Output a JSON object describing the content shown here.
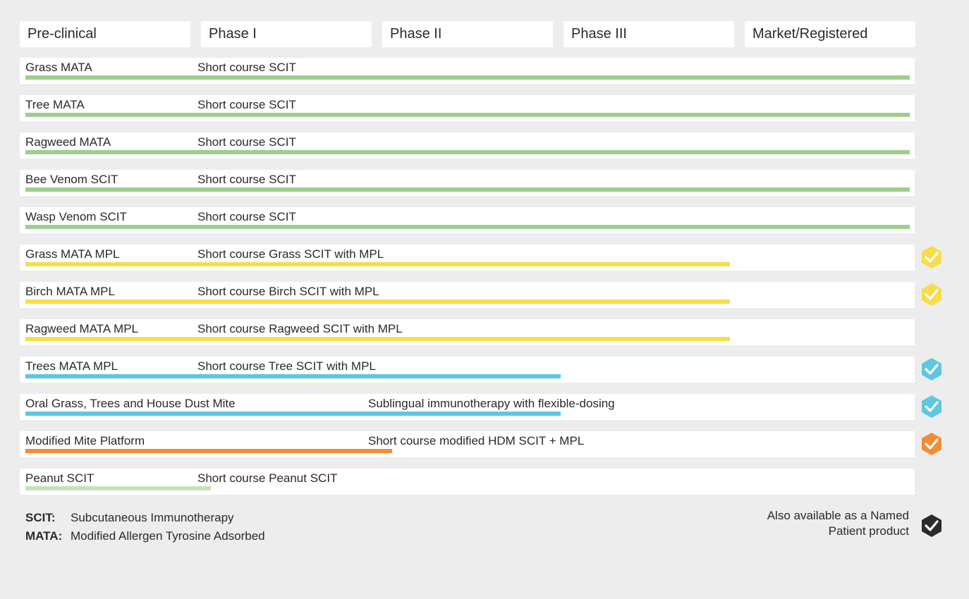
{
  "colors": {
    "green": "#9fce8c",
    "yellow": "#f7dd4c",
    "blue": "#5fc7e0",
    "orange": "#f28c35",
    "light_green": "#c4e3b8",
    "black": "#2b2b2b"
  },
  "chart_data": {
    "type": "table",
    "phases": [
      "Pre-clinical",
      "Phase I",
      "Phase II",
      "Phase III",
      "Market/Registered"
    ],
    "rows": [
      {
        "product": "Grass MATA",
        "description": "Short course SCIT",
        "progress": 1.0,
        "color": "green",
        "badge": null
      },
      {
        "product": "Tree MATA",
        "description": "Short course SCIT",
        "progress": 1.0,
        "color": "green",
        "badge": null
      },
      {
        "product": "Ragweed MATA",
        "description": "Short course SCIT",
        "progress": 1.0,
        "color": "green",
        "badge": null
      },
      {
        "product": "Bee Venom SCIT",
        "description": "Short course SCIT",
        "progress": 1.0,
        "color": "green",
        "badge": null
      },
      {
        "product": "Wasp Venom SCIT",
        "description": "Short course SCIT",
        "progress": 1.0,
        "color": "green",
        "badge": null
      },
      {
        "product": "Grass MATA MPL",
        "description": "Short course Grass SCIT with MPL",
        "progress": 0.797,
        "color": "yellow",
        "badge": "yellow"
      },
      {
        "product": "Birch MATA MPL",
        "description": "Short course Birch SCIT with MPL",
        "progress": 0.797,
        "color": "yellow",
        "badge": "yellow"
      },
      {
        "product": "Ragweed MATA MPL",
        "description": "Short course Ragweed SCIT with MPL",
        "progress": 0.797,
        "color": "yellow",
        "badge": null
      },
      {
        "product": "Trees MATA MPL",
        "description": "Short course Tree SCIT with MPL",
        "progress": 0.605,
        "color": "blue",
        "badge": "blue"
      },
      {
        "product": "Oral Grass, Trees and House Dust Mite",
        "description": "Sublingual immunotherapy with flexible-dosing",
        "progress": 0.605,
        "color": "blue",
        "badge": "blue",
        "desc_phase": 2
      },
      {
        "product": "Modified Mite Platform",
        "description": "Short course modified HDM SCIT + MPL",
        "progress": 0.415,
        "color": "orange",
        "badge": "orange",
        "desc_phase": 2
      },
      {
        "product": "Peanut SCIT",
        "description": "Short course Peanut SCIT",
        "progress": 0.21,
        "color": "light_green",
        "badge": null
      }
    ]
  },
  "legend": {
    "items": [
      {
        "abbr": "SCIT:",
        "text": "Subcutaneous Immunotherapy"
      },
      {
        "abbr": "MATA:",
        "text": "Modified Allergen Tyrosine Adsorbed"
      }
    ],
    "named_patient_line1": "Also available as a Named",
    "named_patient_line2": "Patient product",
    "named_patient_badge": "black"
  }
}
